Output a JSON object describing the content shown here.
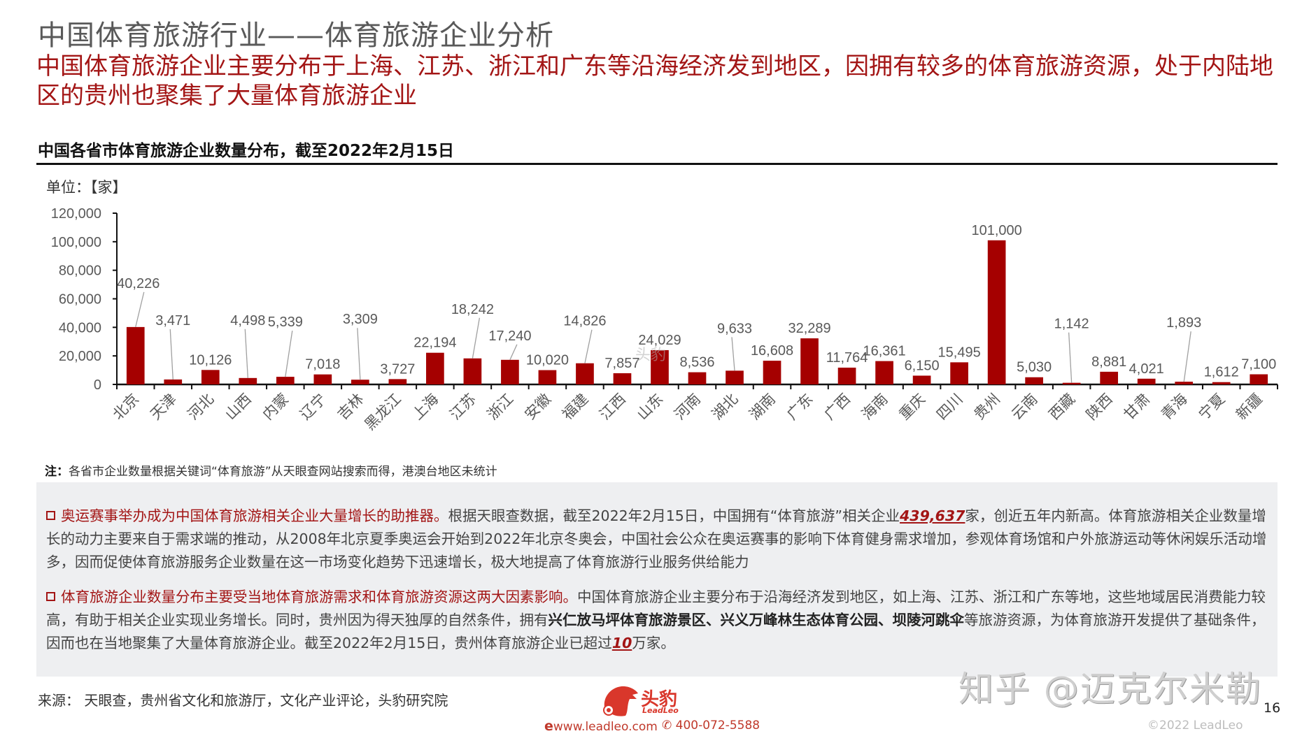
{
  "header": {
    "title": "中国体育旅游行业——体育旅游企业分析",
    "subtitle": "中国体育旅游企业主要分布于上海、江苏、浙江和广东等沿海经济发到地区，因拥有较多的体育旅游资源，处于内陆地区的贵州也聚集了大量体育旅游企业"
  },
  "chart_section": {
    "title": "中国各省市体育旅游企业数量分布，截至2022年2月15日",
    "unit": "单位：【家】",
    "note_label": "注：",
    "note_text": "各省市企业数量根据关键词“体育旅游”从天眼查网站搜索而得，港澳台地区未统计",
    "watermark": "头豹"
  },
  "chart_data": {
    "type": "bar",
    "title": "中国各省市体育旅游企业数量分布，截至2022年2月15日",
    "xlabel": "",
    "ylabel": "单位：【家】",
    "ylim": [
      0,
      120000
    ],
    "yticks": [
      0,
      20000,
      40000,
      60000,
      80000,
      100000,
      120000
    ],
    "ytick_labels": [
      "0",
      "20,000",
      "40,000",
      "60,000",
      "80,000",
      "100,000",
      "120,000"
    ],
    "grid": false,
    "legend": null,
    "bar_color": "#a50000",
    "categories": [
      "北京",
      "天津",
      "河北",
      "山西",
      "内蒙",
      "辽宁",
      "吉林",
      "黑龙江",
      "上海",
      "江苏",
      "浙江",
      "安徽",
      "福建",
      "江西",
      "山东",
      "河南",
      "湖北",
      "湖南",
      "广东",
      "广西",
      "海南",
      "重庆",
      "四川",
      "贵州",
      "云南",
      "西藏",
      "陕西",
      "甘肃",
      "青海",
      "宁夏",
      "新疆"
    ],
    "values": [
      40226,
      3471,
      10126,
      4498,
      5339,
      7018,
      3309,
      3727,
      22194,
      18242,
      17240,
      10020,
      14826,
      7857,
      24029,
      8536,
      9633,
      16608,
      32289,
      11764,
      16361,
      6150,
      15495,
      101000,
      5030,
      1142,
      8881,
      4021,
      1893,
      1612,
      7100
    ],
    "value_labels": [
      "40,226",
      "3,471",
      "10,126",
      "4,498",
      "5,339",
      "7,018",
      "3,309",
      "3,727",
      "22,194",
      "18,242",
      "17,240",
      "10,020",
      "14,826",
      "7,857",
      "24,029",
      "8,536",
      "9,633",
      "16,608",
      "32,289",
      "11,764",
      "16,361",
      "6,150",
      "15,495",
      "101,000",
      "5,030",
      "1,142",
      "8,881",
      "4,021",
      "1,893",
      "1,612",
      "7,100"
    ]
  },
  "summary": {
    "para1": {
      "lead": "奥运赛事举办成为中国体育旅游相关企业大量增长的助推器。",
      "text_a": "根据天眼查数据，截至2022年2月15日，中国拥有“体育旅游”相关企业",
      "highlight": "439,637",
      "text_b": "家，创近五年内新高。体育旅游相关企业数量增长的动力主要来自于需求端的推动，从2008年北京夏季奥运会开始到2022年北京冬奥会，中国社会公众在奥运赛事的影响下体育健身需求增加，参观体育场馆和户外旅游运动等休闲娱乐活动增多，因而促使体育旅游服务企业数量在这一市场变化趋势下迅速增长，极大地提高了体育旅游行业服务供给能力"
    },
    "para2": {
      "lead": "体育旅游企业数量分布主要受当地体育旅游需求和体育旅游资源这两大因素影响。",
      "text_a": "中国体育旅游企业主要分布于沿海经济发到地区，如上海、江苏、浙江和广东等地，这些地域居民消费能力较高，有助于相关企业实现业务增长。同时，贵州因为得天独厚的自然条件，拥有",
      "bold": "兴仁放马坪体育旅游景区、兴义万峰林生态体育公园、坝陵河跳伞",
      "text_b": "等旅游资源，为体育旅游开发提供了基础条件，因而也在当地聚集了大量体育旅游企业。截至2022年2月15日，贵州体育旅游企业已超过",
      "highlight": "10",
      "text_c": "万家。"
    }
  },
  "footer": {
    "source": "来源：  天眼查，贵州省文化和旅游厅，文化产业评论，头豹研究院",
    "logo_text": "头豹",
    "logo_sub": "LeadLeo",
    "website": "www.leadleo.com",
    "phone": "400-072-5588",
    "watermark": "知乎 @迈克尔米勒",
    "page_number": "16",
    "copyright": "©2022 LeadLeo"
  },
  "colors": {
    "accent_red": "#a31515",
    "bar": "#a50000",
    "title_gray": "#595959",
    "box_bg": "#eeeff1"
  }
}
